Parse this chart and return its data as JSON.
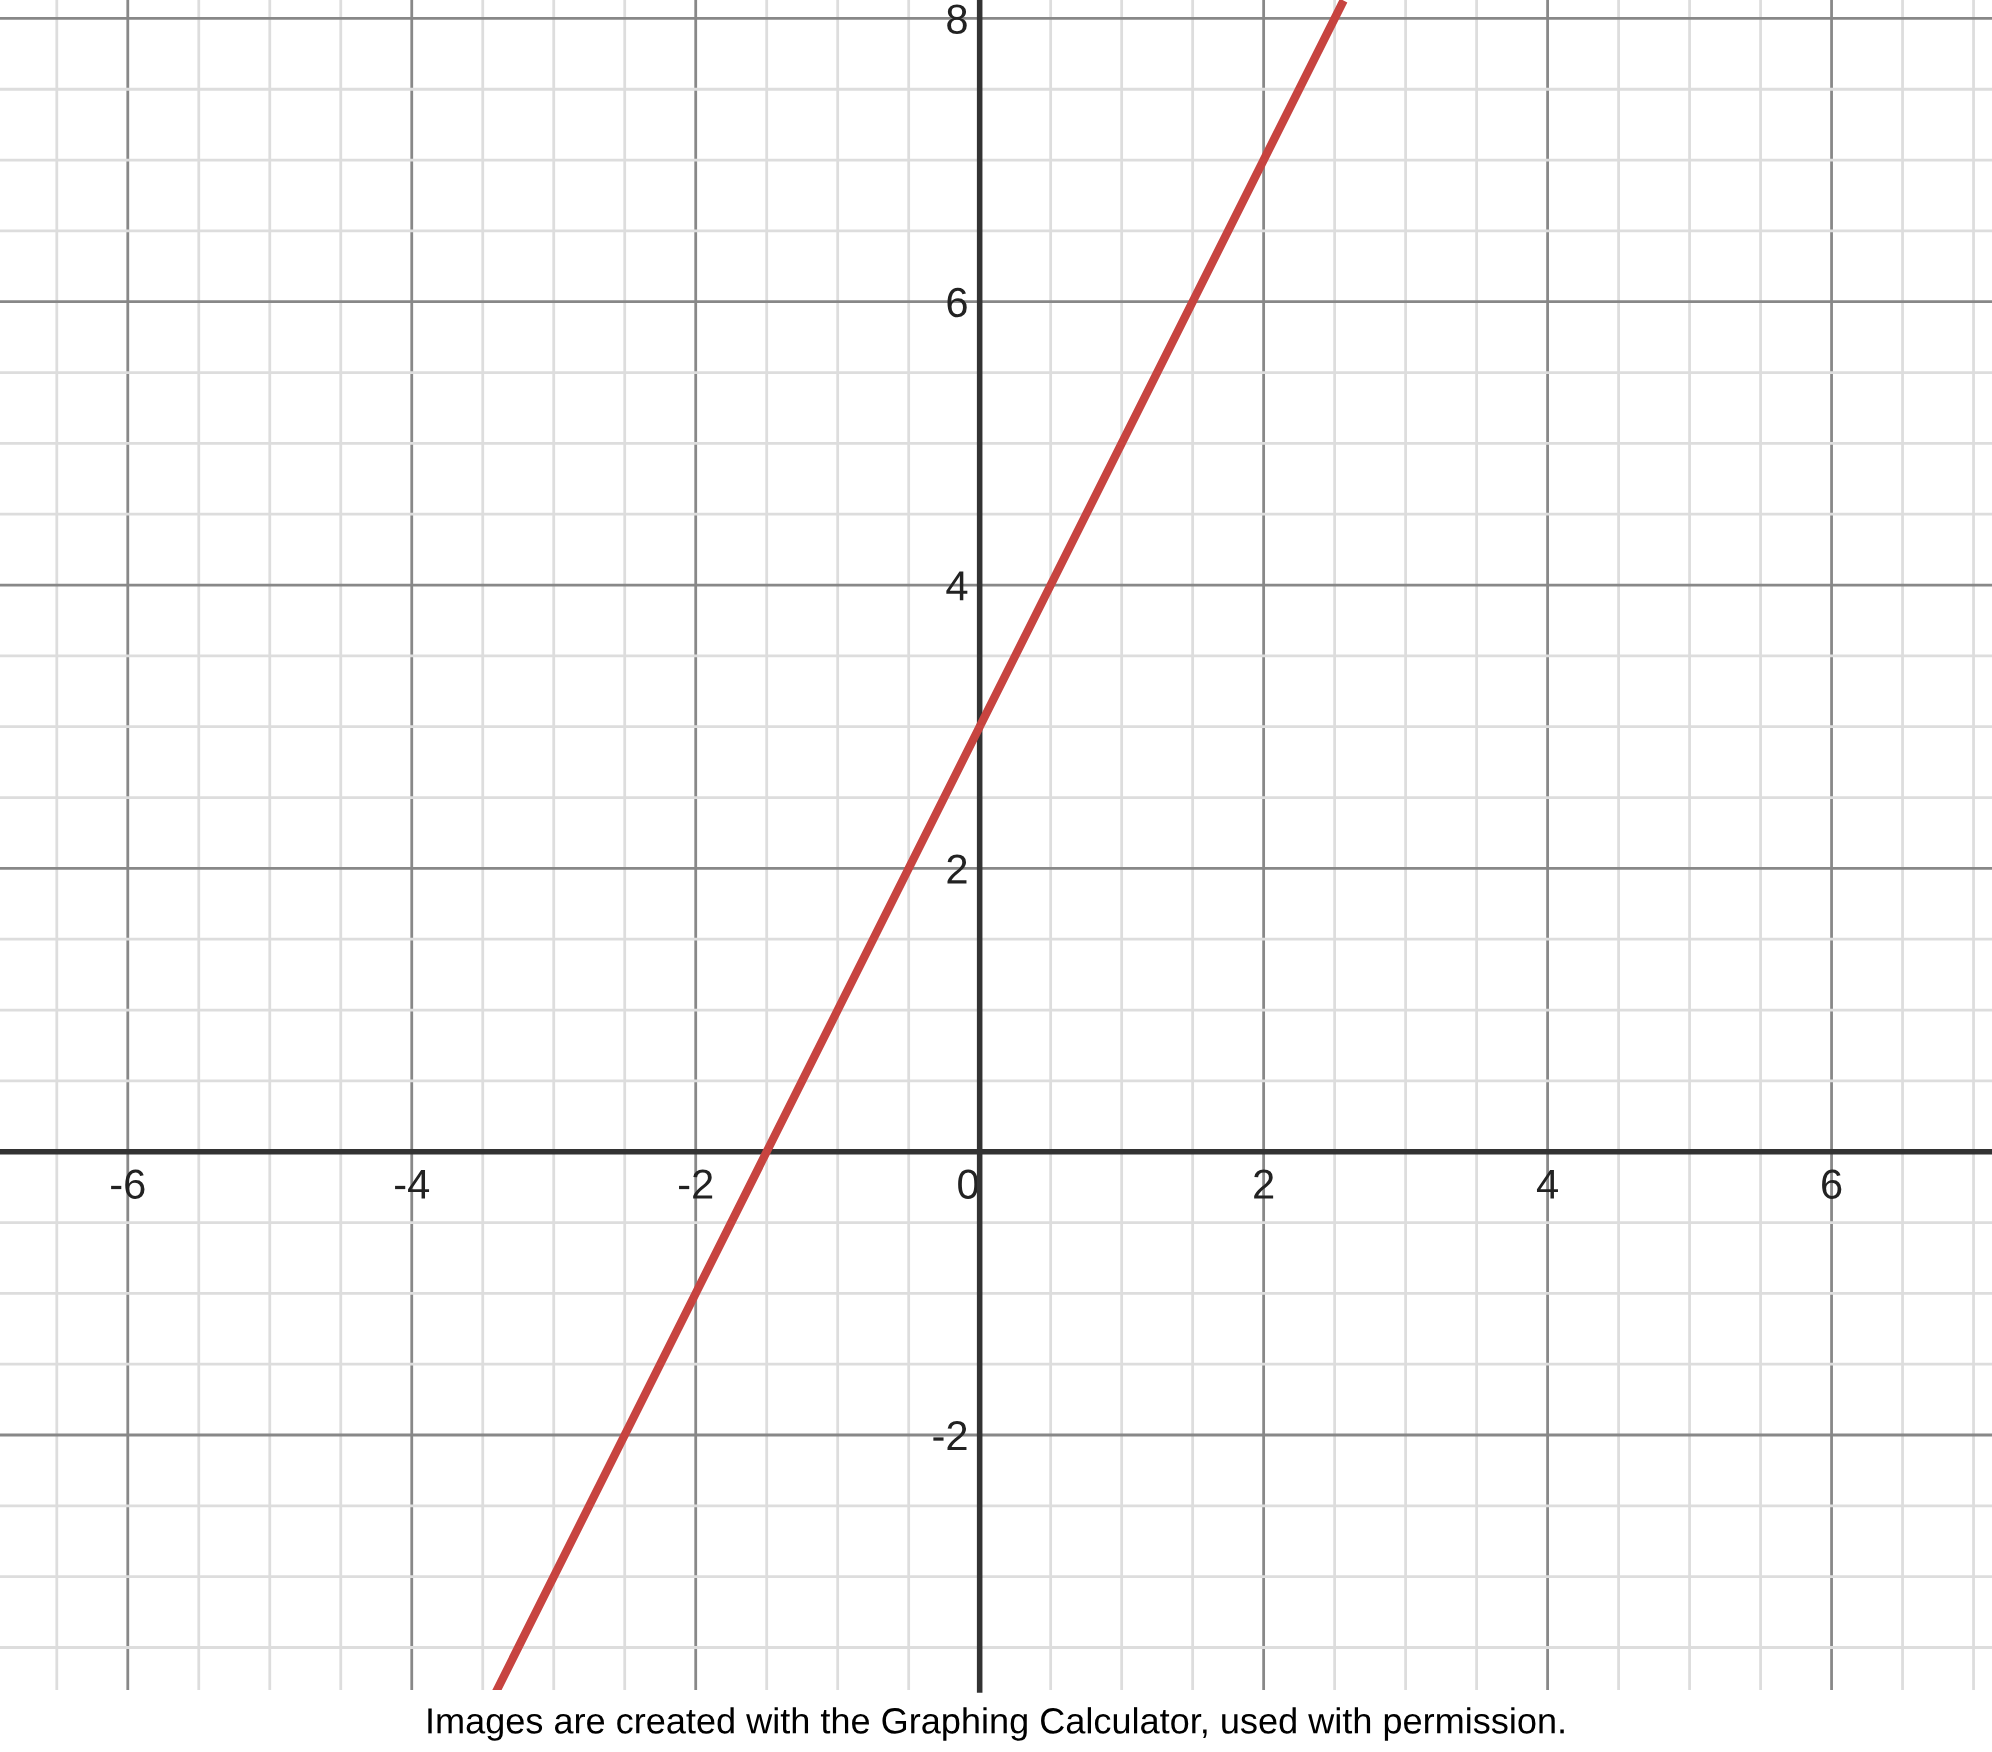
{
  "chart_data": {
    "type": "line",
    "x": [
      -3.4,
      2.55
    ],
    "series": [
      {
        "color": "#c74440",
        "values": [
          -3.8,
          8.1
        ]
      }
    ],
    "xlim": [
      -6.9,
      7.13
    ],
    "ylim": [
      -3.8,
      8.13
    ],
    "xticks": [
      -6,
      -4,
      -2,
      0,
      2,
      4,
      6
    ],
    "yticks": [
      -2,
      2,
      4,
      6,
      8
    ],
    "grid": true,
    "line_style": "solid",
    "marker": "none",
    "annotations": [
      "Images are created with the Graphing Calculator, used with permission."
    ]
  }
}
